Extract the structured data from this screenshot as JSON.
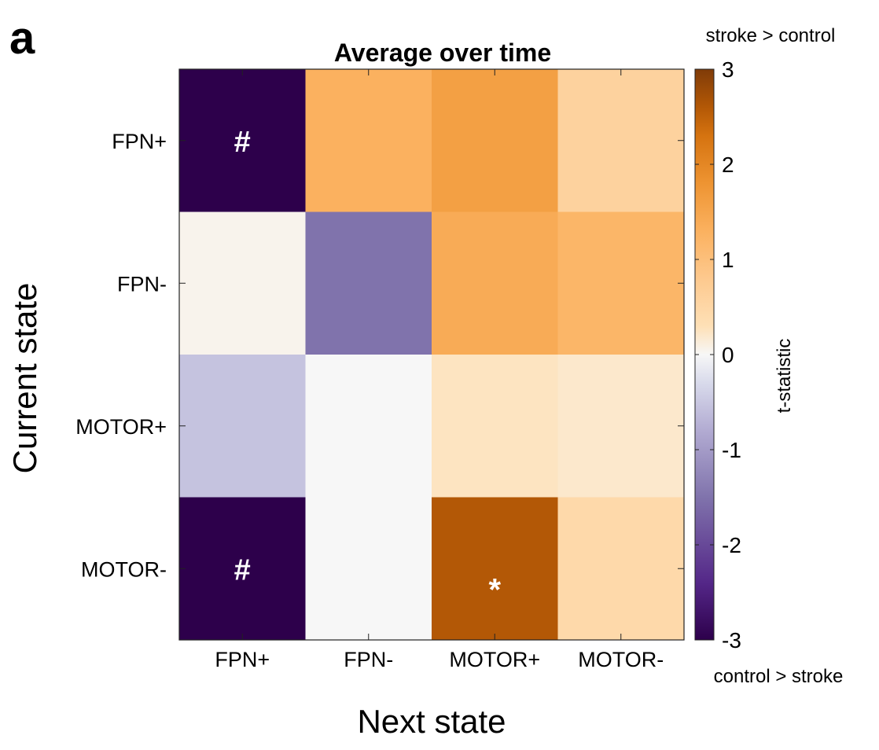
{
  "panel_label": "a",
  "chart_data": {
    "type": "heatmap",
    "title": "Average over time",
    "xlabel": "Next state",
    "ylabel": "Current state",
    "x_categories": [
      "FPN+",
      "FPN-",
      "MOTOR+",
      "MOTOR-"
    ],
    "y_categories": [
      "FPN+",
      "FPN-",
      "MOTOR+",
      "MOTOR-"
    ],
    "values": [
      [
        -3.0,
        1.3,
        1.6,
        0.6
      ],
      [
        0.05,
        -1.5,
        1.4,
        1.2
      ],
      [
        -0.55,
        0.0,
        0.25,
        0.2
      ],
      [
        -3.0,
        0.0,
        2.6,
        0.45
      ]
    ],
    "annotations": [
      {
        "row": 0,
        "col": 0,
        "text": "#"
      },
      {
        "row": 3,
        "col": 0,
        "text": "#"
      },
      {
        "row": 3,
        "col": 2,
        "text": "*"
      }
    ],
    "colorbar": {
      "label": "t-statistic",
      "range": [
        -3,
        3
      ],
      "ticks": [
        "3",
        "2",
        "1",
        "0",
        "-1",
        "-2",
        "-3"
      ],
      "tick_values": [
        3,
        2,
        1,
        0,
        -1,
        -2,
        -3
      ],
      "top_note": "stroke > control",
      "bottom_note": "control > stroke",
      "colors": {
        "negative": "#2d004b",
        "zero": "#f7f7f7",
        "positive": "#7f3b08"
      }
    },
    "grid": false
  }
}
